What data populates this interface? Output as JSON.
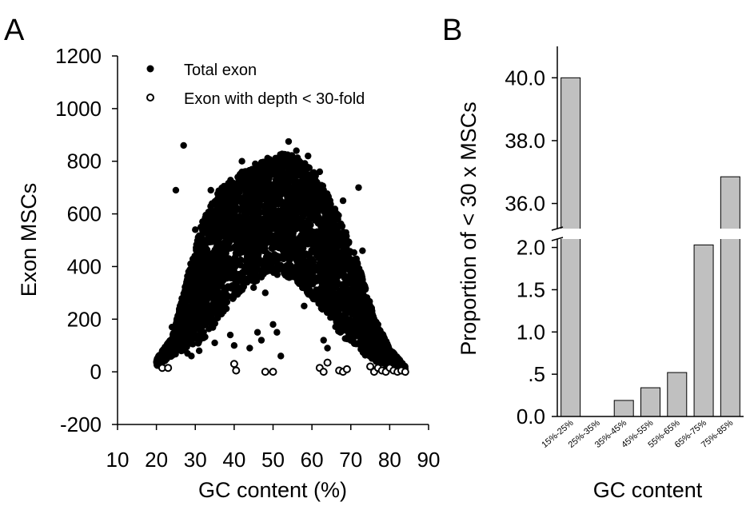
{
  "chart_data": [
    {
      "panel_label": "A",
      "type": "scatter",
      "xlabel": "GC content (%)",
      "ylabel": "Exon MSCs",
      "xlim": [
        10,
        90
      ],
      "ylim": [
        -200,
        1200
      ],
      "xticks": [
        "10",
        "20",
        "30",
        "40",
        "50",
        "60",
        "70",
        "80",
        "90"
      ],
      "yticks": [
        "-200",
        "0",
        "200",
        "400",
        "600",
        "800",
        "1000",
        "1200"
      ],
      "legend_position": "top-left",
      "grid": false,
      "series": [
        {
          "name": "Total exon",
          "marker": "filled-circle",
          "envelope_upper": [
            [
              20,
              50
            ],
            [
              24,
              130
            ],
            [
              28,
              370
            ],
            [
              32,
              580
            ],
            [
              36,
              690
            ],
            [
              40,
              740
            ],
            [
              44,
              780
            ],
            [
              48,
              810
            ],
            [
              52,
              830
            ],
            [
              56,
              820
            ],
            [
              60,
              770
            ],
            [
              64,
              680
            ],
            [
              68,
              560
            ],
            [
              72,
              410
            ],
            [
              76,
              210
            ],
            [
              80,
              90
            ],
            [
              84,
              20
            ]
          ],
          "envelope_lower": [
            [
              20,
              20
            ],
            [
              24,
              60
            ],
            [
              28,
              90
            ],
            [
              32,
              110
            ],
            [
              36,
              200
            ],
            [
              40,
              280
            ],
            [
              44,
              330
            ],
            [
              48,
              360
            ],
            [
              52,
              370
            ],
            [
              56,
              340
            ],
            [
              60,
              280
            ],
            [
              64,
              210
            ],
            [
              68,
              130
            ],
            [
              72,
              80
            ],
            [
              76,
              40
            ],
            [
              80,
              20
            ],
            [
              84,
              10
            ]
          ],
          "points": [
            [
              27,
              860
            ],
            [
              25,
              690
            ],
            [
              54,
              875
            ],
            [
              72,
              700
            ],
            [
              45,
              320
            ],
            [
              48,
              300
            ],
            [
              50,
              180
            ],
            [
              51,
              150
            ],
            [
              52,
              60
            ],
            [
              46,
              150
            ],
            [
              47,
              120
            ],
            [
              44,
              90
            ],
            [
              33,
              590
            ],
            [
              30,
              540
            ],
            [
              70,
              380
            ],
            [
              74,
              160
            ],
            [
              75,
              130
            ],
            [
              76,
              110
            ],
            [
              77,
              80
            ],
            [
              65,
              330
            ],
            [
              66,
              240
            ],
            [
              60,
              300
            ],
            [
              58,
              250
            ],
            [
              63,
              120
            ],
            [
              64,
              90
            ],
            [
              39,
              140
            ],
            [
              38,
              240
            ],
            [
              36,
              280
            ],
            [
              21,
              50
            ],
            [
              23,
              80
            ],
            [
              24,
              170
            ],
            [
              26,
              150
            ],
            [
              27,
              100
            ],
            [
              34,
              690
            ],
            [
              42,
              800
            ],
            [
              56,
              840
            ],
            [
              59,
              820
            ],
            [
              62,
              760
            ],
            [
              68,
              650
            ],
            [
              73,
              460
            ],
            [
              78,
              130
            ],
            [
              79,
              90
            ],
            [
              40,
              100
            ],
            [
              35,
              110
            ],
            [
              28,
              70
            ],
            [
              29,
              60
            ],
            [
              31,
              80
            ]
          ]
        },
        {
          "name": "Exon with depth < 30-fold",
          "marker": "open-circle",
          "points": [
            [
              21.5,
              15
            ],
            [
              23,
              15
            ],
            [
              40,
              30
            ],
            [
              40.5,
              5
            ],
            [
              48,
              0
            ],
            [
              50,
              0
            ],
            [
              62,
              15
            ],
            [
              63,
              0
            ],
            [
              64,
              35
            ],
            [
              67,
              5
            ],
            [
              68,
              0
            ],
            [
              69,
              10
            ],
            [
              75,
              20
            ],
            [
              76,
              0
            ],
            [
              77,
              15
            ],
            [
              78,
              5
            ],
            [
              79,
              0
            ],
            [
              80,
              15
            ],
            [
              81,
              5
            ],
            [
              82,
              0
            ],
            [
              83,
              5
            ],
            [
              84,
              0
            ]
          ]
        }
      ]
    },
    {
      "panel_label": "B",
      "type": "bar",
      "xlabel": "GC content",
      "ylabel": "Proportion of < 30 x  MSCs",
      "categories": [
        "15%-25%",
        "25%-35%",
        "35%-45%",
        "45%-55%",
        "55%-65%",
        "65%-75%",
        "75%-85%"
      ],
      "values": [
        40.0,
        0.0,
        0.19,
        0.34,
        0.52,
        2.03,
        36.85
      ],
      "broken_axis": true,
      "lower_ylim": [
        0,
        2.1
      ],
      "upper_ylim": [
        35.2,
        41
      ],
      "yticks_lower": [
        ".0",
        ".5",
        "1.0",
        "1.5",
        "2.0"
      ],
      "yticks_lower_values": [
        0,
        0.5,
        1.0,
        1.5,
        2.0
      ],
      "yticks_upper": [
        "36.0",
        "38.0",
        "40.0"
      ],
      "yticks_upper_values": [
        36,
        38,
        40
      ],
      "ytick_zero_label": "0.0",
      "bar_color": "#c0c0c0",
      "grid": false
    }
  ]
}
